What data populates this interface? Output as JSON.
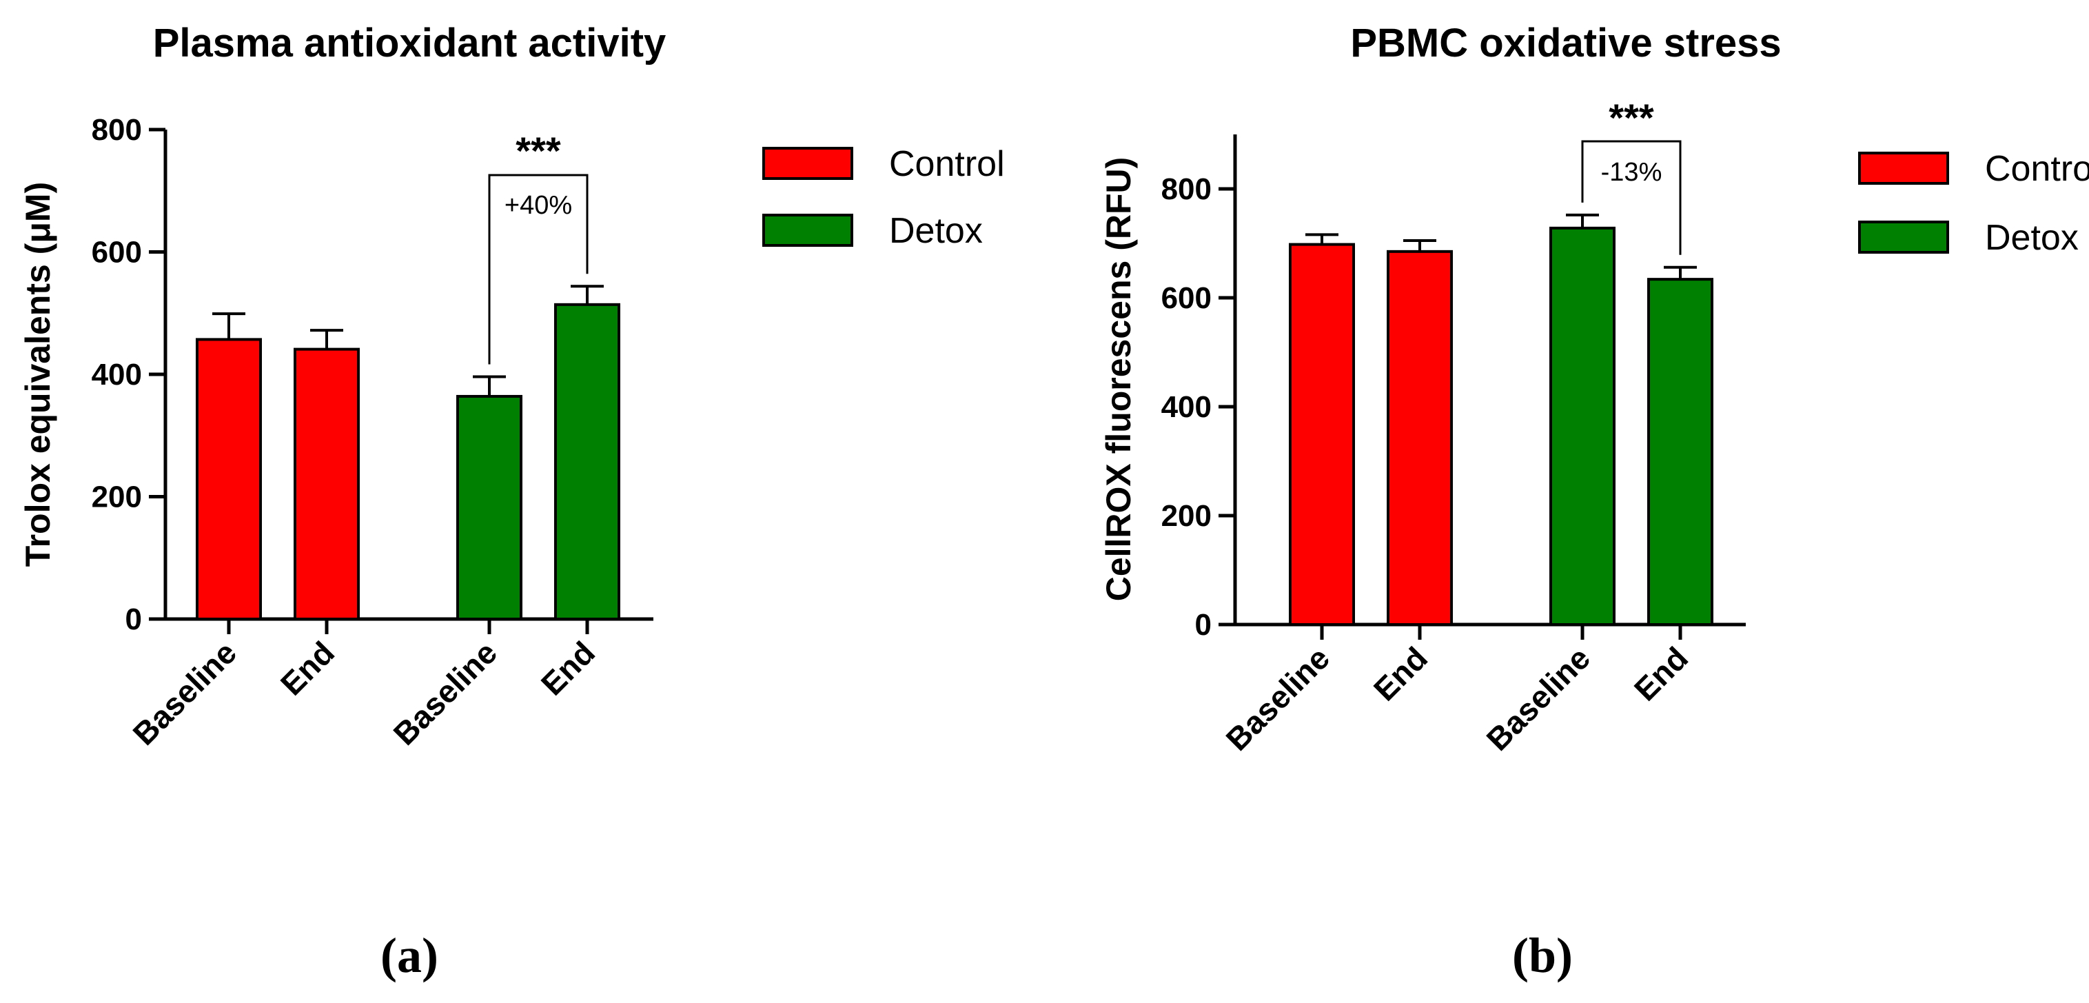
{
  "colors": {
    "control": "#ff0000",
    "detox": "#008000",
    "axis": "#000000"
  },
  "chart_data": [
    {
      "type": "bar",
      "panel_label": "(a)",
      "title": "Plasma antioxidant activity",
      "ylabel": "Trolox equivalents (μM)",
      "xlabel": "",
      "ylim": [
        0,
        800
      ],
      "yticks": [
        0,
        200,
        400,
        600,
        800
      ],
      "categories": [
        "Baseline",
        "End",
        "Baseline",
        "End"
      ],
      "bars": [
        {
          "group": "Control",
          "category": "Baseline",
          "value": 457,
          "error": 42
        },
        {
          "group": "Control",
          "category": "End",
          "value": 441,
          "error": 31
        },
        {
          "group": "Detox",
          "category": "Baseline",
          "value": 364,
          "error": 32
        },
        {
          "group": "Detox",
          "category": "End",
          "value": 514,
          "error": 30
        }
      ],
      "legend": [
        "Control",
        "Detox"
      ],
      "annotation": {
        "stars": "***",
        "label": "+40%"
      }
    },
    {
      "type": "bar",
      "panel_label": "(b)",
      "title": "PBMC oxidative stress",
      "ylabel": "CellROX fluorescens (RFU)",
      "xlabel": "",
      "ylim": [
        0,
        900
      ],
      "yticks": [
        0,
        200,
        400,
        600,
        800
      ],
      "categories": [
        "Baseline",
        "End",
        "Baseline",
        "End"
      ],
      "bars": [
        {
          "group": "Control",
          "category": "Baseline",
          "value": 698,
          "error": 18
        },
        {
          "group": "Control",
          "category": "End",
          "value": 685,
          "error": 20
        },
        {
          "group": "Detox",
          "category": "Baseline",
          "value": 728,
          "error": 24
        },
        {
          "group": "Detox",
          "category": "End",
          "value": 634,
          "error": 22
        }
      ],
      "legend": [
        "Control",
        "Detox"
      ],
      "annotation": {
        "stars": "***",
        "label": "-13%"
      }
    }
  ]
}
